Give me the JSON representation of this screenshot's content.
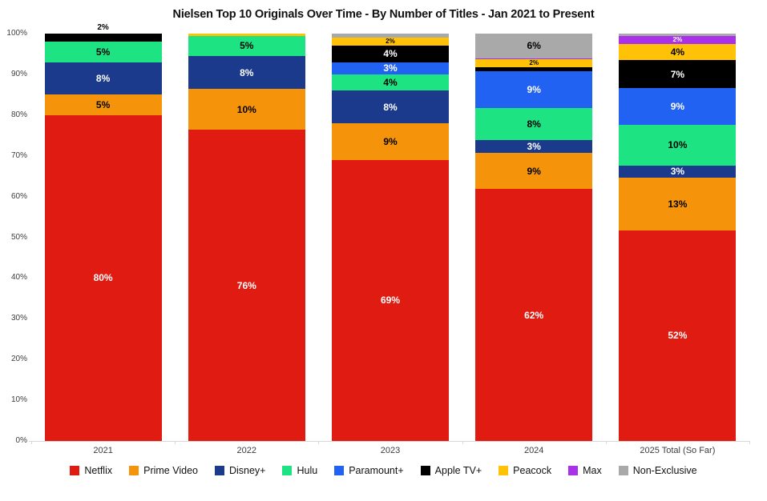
{
  "page": {
    "background_color": "#ffffff"
  },
  "chart_data": {
    "type": "bar",
    "stacked": true,
    "title": "Nielsen Top 10 Originals Over Time - By Number of Titles - Jan 2021 to Present",
    "xlabel": "",
    "ylabel": "",
    "ylim": [
      0,
      100
    ],
    "yticks": [
      "0%",
      "10%",
      "20%",
      "30%",
      "40%",
      "50%",
      "60%",
      "70%",
      "80%",
      "90%",
      "100%"
    ],
    "grid": false,
    "legend_position": "bottom",
    "axis_color": "#d8d8d8",
    "tick_label_color": "#3c3c3c",
    "categories": [
      "2021",
      "2022",
      "2023",
      "2024",
      "2025 Total (So Far)"
    ],
    "series": [
      {
        "name": "Netflix",
        "color": "#e01c12",
        "label_color": "#ffffff",
        "values": [
          80,
          76,
          69,
          62,
          52
        ],
        "labels": [
          "80%",
          "76%",
          "69%",
          "62%",
          "52%"
        ]
      },
      {
        "name": "Prime Video",
        "color": "#f5940a",
        "label_color": "#000000",
        "values": [
          5,
          10,
          9,
          9,
          13
        ],
        "labels": [
          "5%",
          "10%",
          "9%",
          "9%",
          "13%"
        ]
      },
      {
        "name": "Disney+",
        "color": "#1c3a8c",
        "label_color": "#ffffff",
        "values": [
          8,
          8,
          8,
          3,
          3
        ],
        "labels": [
          "8%",
          "8%",
          "8%",
          "3%",
          "3%"
        ]
      },
      {
        "name": "Hulu",
        "color": "#1ee383",
        "label_color": "#000000",
        "values": [
          5,
          5,
          4,
          8,
          10
        ],
        "labels": [
          "5%",
          "5%",
          "4%",
          "8%",
          "10%"
        ]
      },
      {
        "name": "Paramount+",
        "color": "#2262f2",
        "label_color": "#ffffff",
        "values": [
          0,
          0,
          3,
          9,
          9
        ],
        "labels": [
          null,
          null,
          "3%",
          "9%",
          "9%"
        ]
      },
      {
        "name": "Apple TV+",
        "color": "#000000",
        "label_color": "#ffffff",
        "values": [
          2,
          0,
          4,
          1,
          7
        ],
        "labels": [
          null,
          null,
          "4%",
          null,
          "7%"
        ]
      },
      {
        "name": "Peacock",
        "color": "#ffc207",
        "label_color": "#000000",
        "values": [
          0,
          0.5,
          2,
          2,
          4
        ],
        "labels": [
          null,
          null,
          "2%",
          "2%",
          "4%"
        ]
      },
      {
        "name": "Max",
        "color": "#a932e8",
        "label_color": "#ffffff",
        "values": [
          0,
          0,
          0,
          0.3,
          2
        ],
        "labels": [
          null,
          null,
          null,
          null,
          "2%"
        ]
      },
      {
        "name": "Non-Exclusive",
        "color": "#a9a9a9",
        "label_color": "#000000",
        "values": [
          0,
          0,
          1,
          6,
          0.5
        ],
        "labels": [
          null,
          null,
          null,
          "6%",
          null
        ]
      }
    ],
    "outside_labels": [
      {
        "category_index": 0,
        "series": "Apple TV+",
        "text": "2%"
      }
    ]
  }
}
